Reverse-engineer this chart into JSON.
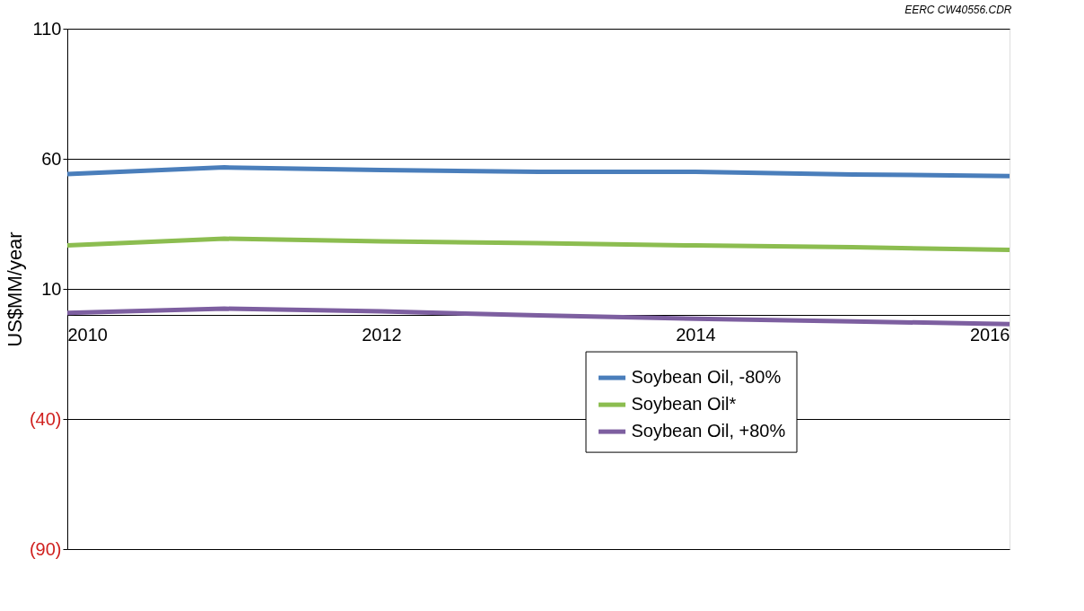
{
  "chart_data": {
    "type": "line",
    "ylabel": "US$MM/year",
    "x": [
      2010,
      2011,
      2012,
      2013,
      2014,
      2015,
      2016
    ],
    "xlim": [
      2010,
      2016
    ],
    "xticks": [
      2010,
      2012,
      2014,
      2016
    ],
    "ylim": [
      -90,
      110
    ],
    "yticks": [
      110,
      60,
      10,
      {
        "value": -40,
        "label": "(40)"
      },
      {
        "value": -90,
        "label": "(90)"
      }
    ],
    "grid": "y",
    "legend": "bottom right",
    "line_style": "solid",
    "marker": "none",
    "annotations": [
      "EERC CW40556.CDR"
    ],
    "series": [
      {
        "name": "Soybean Oil, -80%",
        "color": "#4a7ebb",
        "values": [
          54.1,
          56.7,
          55.7,
          55.0,
          55.0,
          54.0,
          53.4
        ]
      },
      {
        "name": "Soybean Oil*",
        "color": "#8cbd50",
        "values": [
          26.7,
          29.3,
          28.3,
          27.6,
          26.7,
          26.0,
          25.0
        ]
      },
      {
        "name": "Soybean Oil, +80%",
        "color": "#7d5fa0",
        "values": [
          0.8,
          2.4,
          1.4,
          -0.2,
          -1.5,
          -2.5,
          -3.5
        ]
      }
    ]
  }
}
